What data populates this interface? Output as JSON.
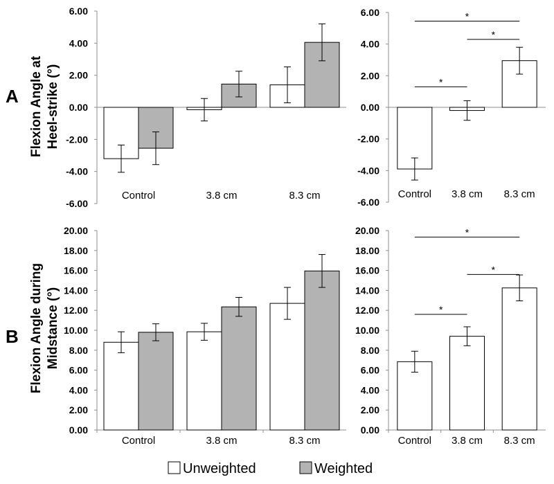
{
  "figure": {
    "panel_a_label": "A",
    "panel_b_label": "B",
    "ylabel_a_line1": "Flexion Angle at",
    "ylabel_a_line2": "Heel-strike (°)",
    "ylabel_b_line1": "Flexion Angle during",
    "ylabel_b_line2": "Midstance (°)"
  },
  "legend": {
    "items": [
      {
        "label": "Unweighted",
        "color": "#ffffff"
      },
      {
        "label": "Weighted",
        "color": "#b3b3b3"
      }
    ]
  },
  "colors": {
    "unweighted": "#ffffff",
    "weighted": "#b3b3b3",
    "stroke": "#000000",
    "axis": "#8c8c8c"
  },
  "chart_data": [
    {
      "id": "a_left",
      "type": "bar",
      "title": "",
      "ylabel": "Flexion Angle at Heel-strike (°)",
      "categories": [
        "Control",
        "3.8 cm",
        "8.3 cm"
      ],
      "ylim": [
        -6,
        6
      ],
      "yticks": [
        "6.00",
        "4.00",
        "2.00",
        "0.00",
        "-2.00",
        "-4.00",
        "-6.00"
      ],
      "series": [
        {
          "name": "Unweighted",
          "values": [
            -3.2,
            -0.15,
            1.4
          ],
          "errors": [
            0.85,
            0.7,
            1.12
          ]
        },
        {
          "name": "Weighted",
          "values": [
            -2.55,
            1.45,
            4.05
          ],
          "errors": [
            1.02,
            0.8,
            1.15
          ]
        }
      ]
    },
    {
      "id": "a_right",
      "type": "bar",
      "title": "",
      "categories": [
        "Control",
        "3.8 cm",
        "8.3 cm"
      ],
      "ylim": [
        -6,
        6
      ],
      "yticks": [
        "6.00",
        "4.00",
        "2.00",
        "0.00",
        "-2.00",
        "-4.00",
        "-6.00"
      ],
      "series": [
        {
          "name": "Unweighted",
          "values": [
            -3.9,
            -0.2,
            2.95
          ],
          "errors": [
            0.7,
            0.62,
            0.85
          ]
        }
      ],
      "significance": [
        {
          "from": 0,
          "to": 1,
          "label": "*",
          "y": 1.3
        },
        {
          "from": 1,
          "to": 2,
          "label": "*",
          "y": 4.3
        },
        {
          "from": 0,
          "to": 2,
          "label": "*",
          "y": 5.45
        }
      ]
    },
    {
      "id": "b_left",
      "type": "bar",
      "title": "",
      "ylabel": "Flexion Angle during Midstance (°)",
      "categories": [
        "Control",
        "3.8 cm",
        "8.3 cm"
      ],
      "ylim": [
        0,
        20
      ],
      "yticks": [
        "20.00",
        "18.00",
        "16.00",
        "14.00",
        "12.00",
        "10.00",
        "8.00",
        "6.00",
        "4.00",
        "2.00",
        "0.00"
      ],
      "series": [
        {
          "name": "Unweighted",
          "values": [
            8.8,
            9.85,
            12.7
          ],
          "errors": [
            1.05,
            0.85,
            1.6
          ]
        },
        {
          "name": "Weighted",
          "values": [
            9.8,
            12.35,
            15.95
          ],
          "errors": [
            0.85,
            0.95,
            1.65
          ]
        }
      ]
    },
    {
      "id": "b_right",
      "type": "bar",
      "title": "",
      "categories": [
        "Control",
        "3.8 cm",
        "8.3 cm"
      ],
      "ylim": [
        0,
        20
      ],
      "yticks": [
        "20.00",
        "18.00",
        "16.00",
        "14.00",
        "12.00",
        "10.00",
        "8.00",
        "6.00",
        "4.00",
        "2.00",
        "0.00"
      ],
      "series": [
        {
          "name": "Unweighted",
          "values": [
            6.85,
            9.4,
            14.25
          ],
          "errors": [
            1.05,
            0.95,
            1.3
          ]
        }
      ],
      "significance": [
        {
          "from": 0,
          "to": 1,
          "label": "*",
          "y": 11.6
        },
        {
          "from": 1,
          "to": 2,
          "label": "*",
          "y": 15.6
        },
        {
          "from": 0,
          "to": 2,
          "label": "*",
          "y": 19.35
        }
      ]
    }
  ]
}
